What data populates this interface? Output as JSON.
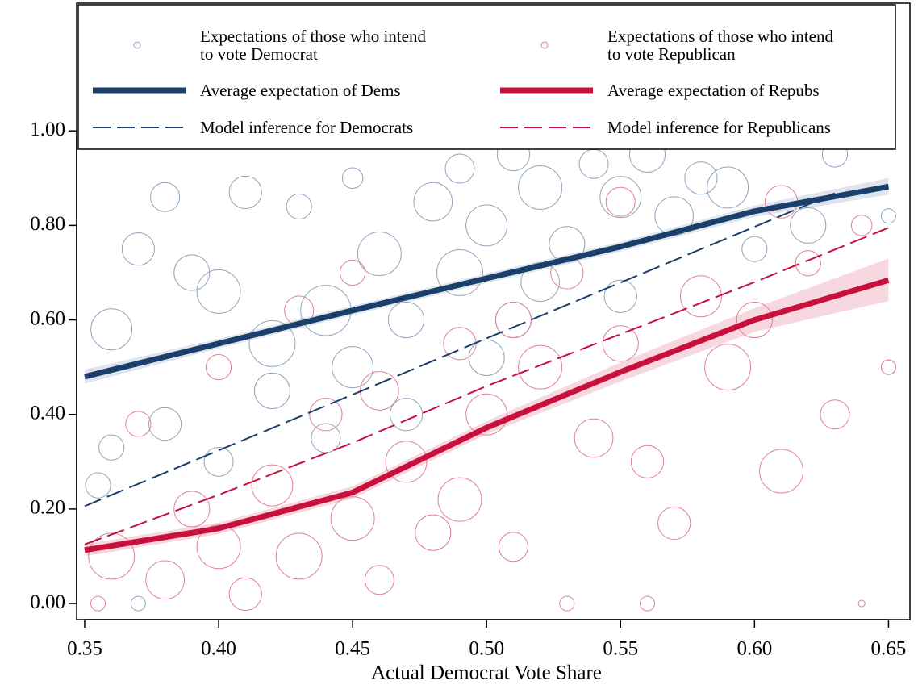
{
  "chart_data": {
    "type": "scatter",
    "x_label": "Actual Democrat Vote Share",
    "xlim": [
      0.347,
      0.658
    ],
    "ylim": [
      -0.034,
      1.27
    ],
    "xticks": [
      0.35,
      {
        "value": 0.4,
        "label": "0.40"
      },
      0.45,
      {
        "value": 0.5,
        "label": "0.50"
      },
      0.55,
      {
        "value": 0.6,
        "label": "0.60"
      },
      0.65
    ],
    "yticks": [
      {
        "value": 0,
        "label": "0.00"
      },
      {
        "value": 0.2,
        "label": "0.20"
      },
      {
        "value": 0.4,
        "label": "0.40"
      },
      {
        "value": 0.6,
        "label": "0.60"
      },
      {
        "value": 0.8,
        "label": "0.80"
      },
      {
        "value": 1,
        "label": "1.00"
      }
    ],
    "series": [
      {
        "name": "Expectations of those who intend to vote Democrat",
        "type": "scatter",
        "color": "#8fa5bd",
        "x": [
          0.355,
          0.36,
          0.37,
          0.38,
          0.39,
          0.4,
          0.41,
          0.42,
          0.43,
          0.44,
          0.45,
          0.45,
          0.46,
          0.47,
          0.48,
          0.49,
          0.49,
          0.5,
          0.51,
          0.51,
          0.52,
          0.52,
          0.53,
          0.54,
          0.55,
          0.55,
          0.56,
          0.57,
          0.58,
          0.59,
          0.6,
          0.62,
          0.63,
          0.65,
          0.38,
          0.4,
          0.42,
          0.36,
          0.44,
          0.47,
          0.5,
          0.37,
          0.65,
          0.53,
          0.45
        ],
        "values": [
          0.25,
          0.58,
          0.75,
          0.86,
          0.7,
          0.66,
          0.87,
          0.55,
          0.84,
          0.62,
          0.9,
          0.5,
          0.74,
          0.6,
          0.85,
          0.92,
          0.7,
          0.8,
          0.95,
          0.6,
          0.88,
          0.68,
          0.76,
          0.93,
          0.86,
          0.65,
          0.95,
          0.82,
          0.9,
          0.88,
          0.75,
          0.8,
          0.95,
          0.82,
          0.38,
          0.3,
          0.45,
          0.33,
          0.35,
          0.4,
          0.52,
          0.0,
          0.5,
          1.0,
          1.0
        ],
        "size": [
          3,
          8,
          5,
          4,
          6,
          9,
          5,
          10,
          3,
          12,
          2,
          8,
          9,
          6,
          7,
          4,
          10,
          8,
          5,
          6,
          9,
          7,
          6,
          4,
          8,
          5,
          6,
          7,
          5,
          8,
          3,
          6,
          3,
          1,
          5,
          4,
          6,
          3,
          4,
          5,
          6,
          1,
          1,
          3,
          2
        ]
      },
      {
        "name": "Expectations of those who intend to vote Republican",
        "type": "scatter",
        "color": "#e07f98",
        "x": [
          0.355,
          0.36,
          0.37,
          0.38,
          0.39,
          0.4,
          0.41,
          0.42,
          0.43,
          0.44,
          0.45,
          0.46,
          0.46,
          0.47,
          0.48,
          0.49,
          0.49,
          0.5,
          0.51,
          0.51,
          0.52,
          0.53,
          0.53,
          0.54,
          0.55,
          0.56,
          0.56,
          0.57,
          0.58,
          0.59,
          0.6,
          0.61,
          0.62,
          0.63,
          0.64,
          0.65,
          0.64,
          0.4,
          0.43,
          0.45,
          0.55,
          0.59,
          0.61
        ],
        "values": [
          0.0,
          0.1,
          0.38,
          0.05,
          0.2,
          0.12,
          0.02,
          0.25,
          0.1,
          0.4,
          0.18,
          0.05,
          0.45,
          0.3,
          0.15,
          0.55,
          0.22,
          0.4,
          0.6,
          0.12,
          0.5,
          0.0,
          0.7,
          0.35,
          0.55,
          0.3,
          0.0,
          0.17,
          0.65,
          0.5,
          0.6,
          0.85,
          0.72,
          0.4,
          0.8,
          0.5,
          0.0,
          0.5,
          0.62,
          0.7,
          0.85,
          1.0,
          0.28
        ],
        "size": [
          1,
          10,
          3,
          7,
          6,
          9,
          5,
          8,
          10,
          5,
          9,
          4,
          7,
          8,
          6,
          5,
          9,
          8,
          6,
          4,
          9,
          1,
          5,
          7,
          6,
          5,
          1,
          5,
          8,
          10,
          6,
          5,
          3,
          4,
          2,
          1,
          0.2,
          3,
          4,
          3,
          4,
          3,
          9
        ]
      },
      {
        "name": "Average expectation of Dems",
        "type": "line",
        "style": "solid",
        "color": "#1a3f6b",
        "band_color": "#dfe5ed",
        "x": [
          0.35,
          0.4,
          0.45,
          0.5,
          0.55,
          0.6,
          0.65
        ],
        "values": [
          0.48,
          0.55,
          0.62,
          0.688,
          0.755,
          0.83,
          0.882
        ],
        "lower": [
          0.465,
          0.54,
          0.61,
          0.678,
          0.745,
          0.818,
          0.865
        ],
        "upper": [
          0.495,
          0.56,
          0.63,
          0.698,
          0.765,
          0.842,
          0.9
        ]
      },
      {
        "name": "Average expectation of Repubs",
        "type": "line",
        "style": "solid",
        "color": "#c8103d",
        "band_color": "#f8d8e0",
        "x": [
          0.35,
          0.4,
          0.45,
          0.5,
          0.55,
          0.6,
          0.65
        ],
        "values": [
          0.113,
          0.159,
          0.235,
          0.372,
          0.49,
          0.6,
          0.684
        ],
        "lower": [
          0.1,
          0.147,
          0.222,
          0.358,
          0.47,
          0.575,
          0.64
        ],
        "upper": [
          0.126,
          0.171,
          0.248,
          0.386,
          0.51,
          0.625,
          0.73
        ]
      },
      {
        "name": "Model inference for Democrats",
        "type": "line",
        "style": "dashed",
        "color": "#1a3f6b",
        "x": [
          0.35,
          0.4,
          0.45,
          0.5,
          0.55,
          0.6,
          0.63
        ],
        "values": [
          0.206,
          0.324,
          0.442,
          0.561,
          0.679,
          0.797,
          0.868
        ]
      },
      {
        "name": "Model inference for Republicans",
        "type": "line",
        "style": "dashed",
        "color": "#c8103d",
        "x": [
          0.35,
          0.4,
          0.45,
          0.5,
          0.55,
          0.6,
          0.65
        ],
        "values": [
          0.125,
          0.23,
          0.34,
          0.46,
          0.57,
          0.68,
          0.795
        ]
      }
    ]
  }
}
